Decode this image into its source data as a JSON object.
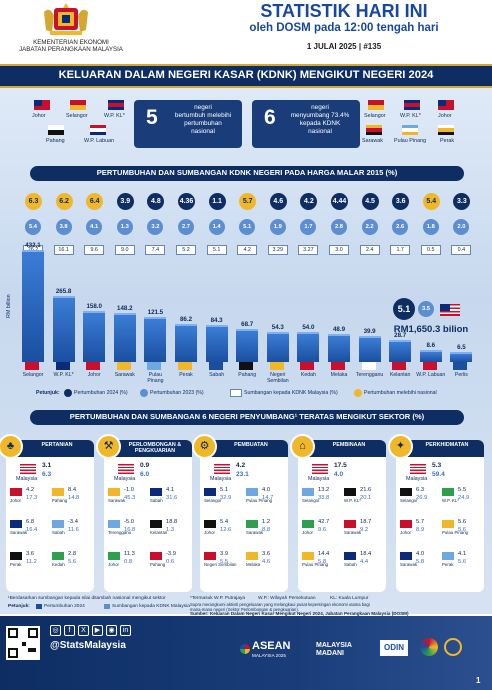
{
  "header": {
    "title": "STATISTIK HARI INI",
    "subtitle": "oleh DOSM pada 12:00 tengah hari",
    "date": "1 JULAI 2025",
    "sep": "|",
    "issue": "#135",
    "ministry_1": "KEMENTERIAN EKONOMI",
    "ministry_2": "JABATAN PERANGKAAN MALAYSIA"
  },
  "banner": "KELUARAN DALAM NEGERI KASAR (KDNK) MENGIKUT NEGERI 2024",
  "summary": {
    "left_num": "5",
    "left_txt1": "negeri",
    "left_txt2": "bertumbuh melebihi",
    "left_txt3": "pertumbuhan",
    "left_txt4": "nasional",
    "right_num": "6",
    "right_txt1": "negeri",
    "right_txt2": "menyumbang 73.4%",
    "right_txt3": "kepada KDNK",
    "right_txt4": "nasional",
    "left_states": [
      "Johor",
      "Selangor",
      "W.P. KL*",
      "Pahang",
      "W.P. Labuan"
    ],
    "right_states": [
      "Selangor",
      "W.P. KL*",
      "Johor",
      "Sarawak",
      "Pulau Pinang",
      "Perak"
    ]
  },
  "sec1": "PERTUMBUHAN DAN SUMBANGAN KDNK NEGERI PADA HARGA MALAR 2015 (%)",
  "chart_data": {
    "type": "bar",
    "ylabel": "RM billion",
    "categories": [
      "Selangor",
      "W.P. KL*",
      "Johor",
      "Sarawak",
      "Pulau Pinang",
      "Perak",
      "Sabah",
      "Pahang",
      "Negeri Sembilan",
      "Kedah",
      "Melaka",
      "Terengganu",
      "Kelantan",
      "W.P. Labuan",
      "Perlis"
    ],
    "values": [
      432.1,
      265.8,
      158.0,
      148.2,
      121.5,
      86.2,
      84.3,
      68.7,
      54.3,
      54.0,
      48.9,
      39.9,
      28.7,
      8.6,
      6.5
    ],
    "value_labels": [
      "432.1",
      "265.8",
      "158.0",
      "148.2",
      "121.5",
      "86.2",
      "84.3",
      "68.7",
      "54.3",
      "54.0",
      "48.9",
      "39.9",
      "28.7",
      "8.6",
      "6.5"
    ],
    "growth_2024": [
      "6.3",
      "6.2",
      "6.4",
      "3.9",
      "4.8",
      "4.36",
      "1.1",
      "5.7",
      "4.6",
      "4.2",
      "4.44",
      "4.5",
      "3.6",
      "5.4",
      "3.3"
    ],
    "growth_2023": [
      "5.4",
      "3.8",
      "4.1",
      "1.3",
      "3.2",
      "2.7",
      "1.4",
      "5.1",
      "1.9",
      "1.7",
      "2.8",
      "2.2",
      "2.6",
      "1.8",
      "2.0"
    ],
    "share": [
      "26.2",
      "16.1",
      "9.6",
      "9.0",
      "7.4",
      "5.2",
      "5.1",
      "4.2",
      "3.29",
      "3.27",
      "3.0",
      "2.4",
      "1.7",
      "0.5",
      "0.4"
    ],
    "highlight": [
      true,
      true,
      true,
      false,
      false,
      false,
      false,
      true,
      false,
      false,
      false,
      false,
      false,
      true,
      false
    ]
  },
  "national": {
    "g2024": "5.1",
    "g2023": "3.5",
    "gdp": "RM1,650.3 bilion",
    "label": "Malaysia"
  },
  "legend": {
    "title": "Petunjuk:",
    "l1": "Pertumbuhan 2024 (%)",
    "l2": "Pertumbuhan 2023 (%)",
    "l3": "Sumbangan kepada KDNK Malaysia (%)",
    "l4": "Pertumbuhan melebihi nasional"
  },
  "sec2": "PERTUMBUHAN DAN SUMBANGAN 6 NEGERI PENYUMBANG¹ TERATAS MENGIKUT SEKTOR (%)",
  "sectors": [
    {
      "name": "PERTANIAN",
      "my_g": "3.1",
      "my_s": "6.3",
      "rows": [
        {
          "st": "Johor",
          "g": "4.2",
          "s": "17.3"
        },
        {
          "st": "Pahang",
          "g": "8.4",
          "s": "14.8"
        },
        {
          "st": "Sarawak",
          "g": "6.8",
          "s": "16.4"
        },
        {
          "st": "Sabah",
          "g": "-3.4",
          "s": "11.6"
        },
        {
          "st": "Perak",
          "g": "3.6",
          "s": "11.2"
        },
        {
          "st": "Kedah",
          "g": "2.8",
          "s": "5.6"
        }
      ]
    },
    {
      "name": "PERLOMBONGAN & PENGKUARIAN",
      "my_g": "0.9",
      "my_s": "6.0",
      "rows": [
        {
          "st": "Sarawak",
          "g": "-1.0",
          "s": "45.3"
        },
        {
          "st": "Sabah",
          "g": "4.1",
          "s": "31.6"
        },
        {
          "st": "Terengganu",
          "g": "-5.0",
          "s": "16.8"
        },
        {
          "st": "Kelantan",
          "g": "18.8",
          "s": "1.3"
        },
        {
          "st": "Johor",
          "g": "11.3",
          "s": "0.8"
        },
        {
          "st": "Pahang",
          "g": "-3.9",
          "s": "0.6"
        }
      ]
    },
    {
      "name": "PEMBUATAN",
      "my_g": "4.2",
      "my_s": "23.1",
      "rows": [
        {
          "st": "Selangor",
          "g": "5.1",
          "s": "32.9"
        },
        {
          "st": "Pulau Pinang",
          "g": "4.0",
          "s": "14.7"
        },
        {
          "st": "Johor",
          "g": "5.4",
          "s": "12.6"
        },
        {
          "st": "Sarawak",
          "g": "1.2",
          "s": "8.8"
        },
        {
          "st": "Negeri Sembilan",
          "g": "3.9",
          "s": "5.5"
        },
        {
          "st": "Melaka",
          "g": "3.6",
          "s": "4.6"
        }
      ]
    },
    {
      "name": "PEMBINAAN",
      "my_g": "17.5",
      "my_s": "4.0",
      "rows": [
        {
          "st": "Selangor",
          "g": "13.2",
          "s": "33.8"
        },
        {
          "st": "W.P. KL*",
          "g": "21.6",
          "s": "20.1"
        },
        {
          "st": "Johor",
          "g": "42.7",
          "s": "9.6"
        },
        {
          "st": "Sarawak",
          "g": "18.7",
          "s": "9.2"
        },
        {
          "st": "Pulau Pinang",
          "g": "14.4",
          "s": "5.8"
        },
        {
          "st": "Sabah",
          "g": "18.4",
          "s": "4.4"
        }
      ]
    },
    {
      "name": "PERKHIDMATAN",
      "my_g": "5.3",
      "my_s": "59.4",
      "rows": [
        {
          "st": "Selangor",
          "g": "6.3",
          "s": "26.9"
        },
        {
          "st": "W.P. KL*",
          "g": "5.5",
          "s": "24.9"
        },
        {
          "st": "Johor",
          "g": "5.7",
          "s": "8.9"
        },
        {
          "st": "Pulau Pinang",
          "g": "5.6",
          "s": "5.6"
        },
        {
          "st": "Sarawak",
          "g": "4.0",
          "s": "5.8"
        },
        {
          "st": "Perak",
          "g": "4.1",
          "s": "5.6"
        }
      ]
    }
  ],
  "notes": {
    "n1": "¹Berdasarkan sumbangan kepada nilai ditambah nasional mengikut sektor",
    "n2": "*Termasuk W.P. Putrajaya",
    "n3": "W.P.: Wilayah Persekutuan",
    "n4": "KL: Kuala Lumpur",
    "n5": "Supra merangkumi aktiviti pengeluaran yang melangkaui pusat kepentingan ekonomi utama bagi",
    "n6": "mana-mana negeri (Sektor Perlombongan & pengkuarian).",
    "src": "Sumber: Keluaran Dalam Negeri Kasar Mengikut Negeri 2024, Jabatan Perangkaan Malaysia (DOSM)",
    "leg_title": "Petunjuk:",
    "leg_g": "Pertumbuhan 2024",
    "leg_s": "Sumbangan kepada KDNK Malaysia"
  },
  "footer": {
    "handle": "@StatsMalaysia",
    "asean": "ASEAN",
    "asean_sub": "MALAYSIA 2025",
    "madani": "MALAYSIA MADANI",
    "odin": "ODIN",
    "page": "1"
  }
}
